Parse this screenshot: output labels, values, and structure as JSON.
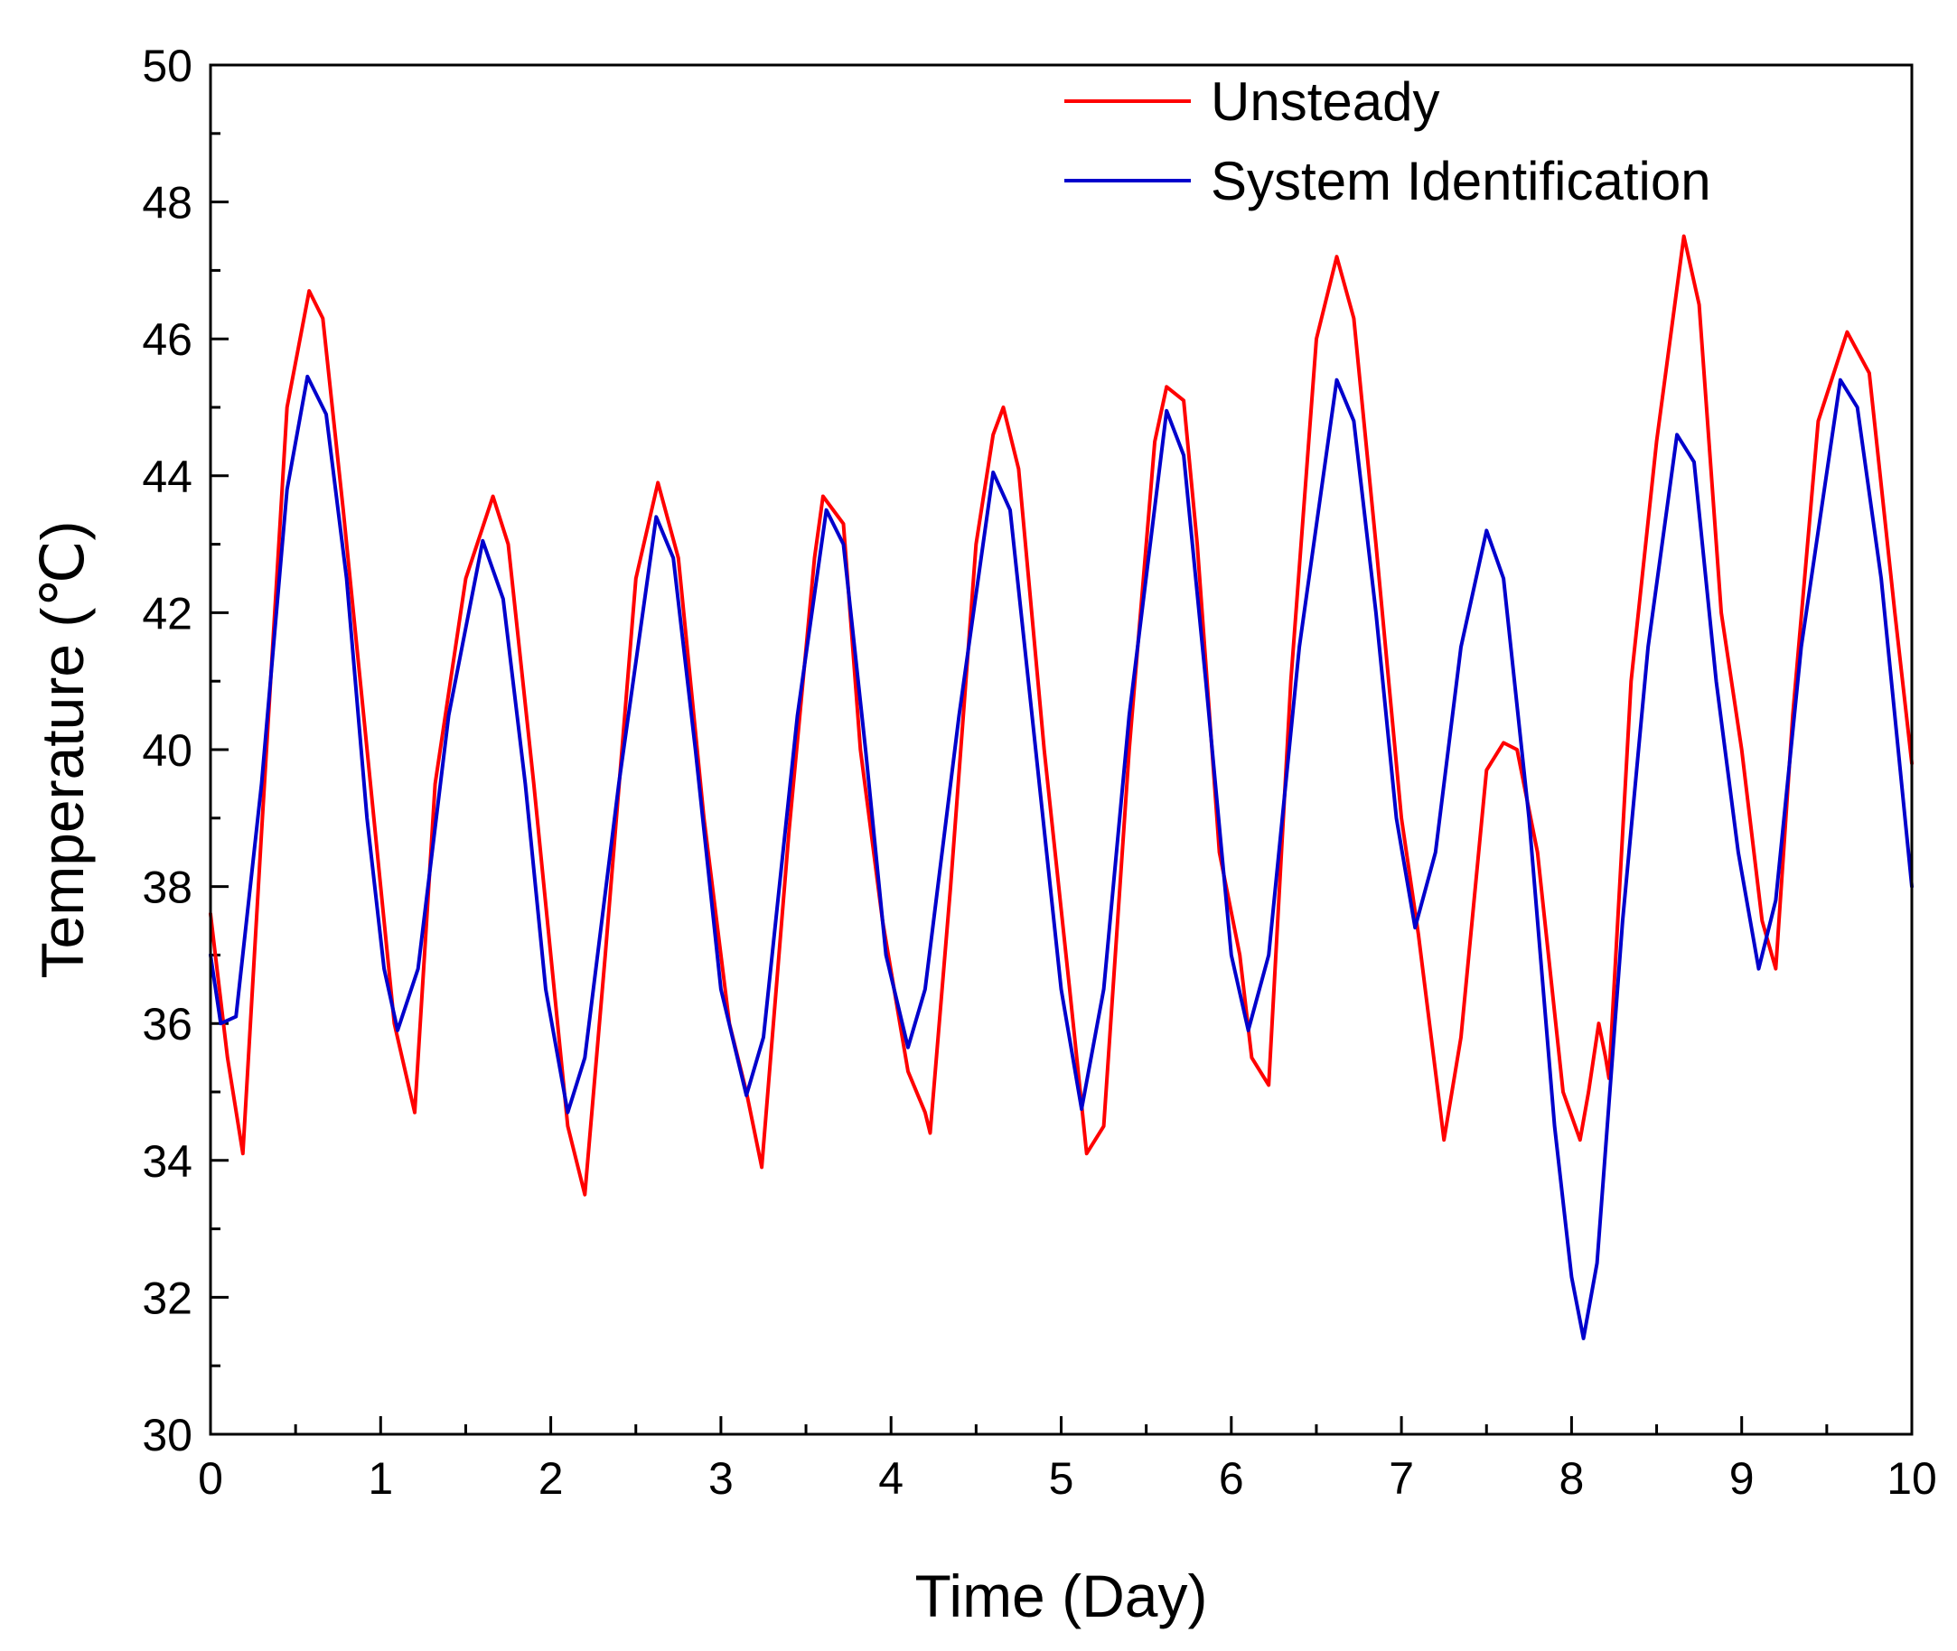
{
  "chart_data": {
    "type": "line",
    "title": "",
    "xlabel": "Time (Day)",
    "ylabel": "Temperature (℃)",
    "xlim": [
      0,
      10
    ],
    "ylim": [
      30,
      50
    ],
    "xticks": [
      0,
      1,
      2,
      3,
      4,
      5,
      6,
      7,
      8,
      9,
      10
    ],
    "yticks": [
      30,
      32,
      34,
      36,
      38,
      40,
      42,
      44,
      46,
      48,
      50
    ],
    "grid": false,
    "legend_position": "top-right",
    "series": [
      {
        "name": "Unsteady",
        "color": "#ff0000",
        "points": [
          [
            0,
            37.6
          ],
          [
            0.1,
            35.5
          ],
          [
            0.19,
            34.1
          ],
          [
            0.3,
            38.8
          ],
          [
            0.45,
            45.0
          ],
          [
            0.58,
            46.7
          ],
          [
            0.66,
            46.3
          ],
          [
            0.78,
            43.5
          ],
          [
            0.9,
            40.5
          ],
          [
            1.0,
            38.0
          ],
          [
            1.08,
            36.0
          ],
          [
            1.2,
            34.7
          ],
          [
            1.32,
            39.5
          ],
          [
            1.5,
            42.5
          ],
          [
            1.66,
            43.7
          ],
          [
            1.75,
            43.0
          ],
          [
            1.9,
            39.5
          ],
          [
            2.0,
            37.0
          ],
          [
            2.1,
            34.5
          ],
          [
            2.2,
            33.5
          ],
          [
            2.32,
            37.0
          ],
          [
            2.5,
            42.5
          ],
          [
            2.63,
            43.9
          ],
          [
            2.75,
            42.8
          ],
          [
            2.9,
            39.0
          ],
          [
            3.05,
            36.0
          ],
          [
            3.15,
            35.0
          ],
          [
            3.24,
            33.9
          ],
          [
            3.4,
            38.8
          ],
          [
            3.55,
            42.8
          ],
          [
            3.6,
            43.7
          ],
          [
            3.72,
            43.3
          ],
          [
            3.82,
            40.0
          ],
          [
            3.95,
            37.5
          ],
          [
            4.1,
            35.3
          ],
          [
            4.2,
            34.7
          ],
          [
            4.23,
            34.4
          ],
          [
            4.35,
            38.0
          ],
          [
            4.5,
            43.0
          ],
          [
            4.6,
            44.6
          ],
          [
            4.66,
            45.0
          ],
          [
            4.75,
            44.1
          ],
          [
            4.9,
            40.0
          ],
          [
            5.05,
            36.5
          ],
          [
            5.15,
            34.1
          ],
          [
            5.25,
            34.5
          ],
          [
            5.4,
            40.0
          ],
          [
            5.55,
            44.5
          ],
          [
            5.62,
            45.3
          ],
          [
            5.72,
            45.1
          ],
          [
            5.8,
            43.0
          ],
          [
            5.93,
            38.5
          ],
          [
            6.05,
            37.0
          ],
          [
            6.12,
            35.5
          ],
          [
            6.22,
            35.1
          ],
          [
            6.35,
            41.0
          ],
          [
            6.5,
            46.0
          ],
          [
            6.62,
            47.2
          ],
          [
            6.72,
            46.3
          ],
          [
            6.85,
            43.0
          ],
          [
            7.0,
            39.0
          ],
          [
            7.1,
            37.3
          ],
          [
            7.25,
            34.3
          ],
          [
            7.35,
            35.8
          ],
          [
            7.5,
            39.7
          ],
          [
            7.6,
            40.1
          ],
          [
            7.68,
            40.0
          ],
          [
            7.8,
            38.5
          ],
          [
            7.95,
            35.0
          ],
          [
            8.05,
            34.3
          ],
          [
            8.1,
            35.0
          ],
          [
            8.16,
            36.0
          ],
          [
            8.2,
            35.5
          ],
          [
            8.22,
            35.2
          ],
          [
            8.35,
            41.0
          ],
          [
            8.5,
            44.5
          ],
          [
            8.66,
            47.5
          ],
          [
            8.75,
            46.5
          ],
          [
            8.88,
            42.0
          ],
          [
            9.0,
            40.0
          ],
          [
            9.12,
            37.5
          ],
          [
            9.2,
            36.8
          ],
          [
            9.3,
            40.5
          ],
          [
            9.45,
            44.8
          ],
          [
            9.62,
            46.1
          ],
          [
            9.75,
            45.5
          ],
          [
            9.9,
            42.0
          ],
          [
            10.0,
            39.8
          ]
        ]
      },
      {
        "name": "System Identification",
        "color": "#0000cc",
        "points": [
          [
            0,
            37.0
          ],
          [
            0.06,
            36.0
          ],
          [
            0.15,
            36.1
          ],
          [
            0.3,
            39.5
          ],
          [
            0.45,
            43.8
          ],
          [
            0.57,
            45.45
          ],
          [
            0.68,
            44.9
          ],
          [
            0.8,
            42.5
          ],
          [
            0.92,
            39.0
          ],
          [
            1.02,
            36.8
          ],
          [
            1.1,
            35.9
          ],
          [
            1.22,
            36.8
          ],
          [
            1.4,
            40.5
          ],
          [
            1.6,
            43.05
          ],
          [
            1.72,
            42.2
          ],
          [
            1.85,
            39.5
          ],
          [
            1.97,
            36.5
          ],
          [
            2.1,
            34.7
          ],
          [
            2.2,
            35.5
          ],
          [
            2.4,
            39.5
          ],
          [
            2.62,
            43.4
          ],
          [
            2.72,
            42.8
          ],
          [
            2.85,
            40.0
          ],
          [
            3.0,
            36.5
          ],
          [
            3.15,
            34.95
          ],
          [
            3.25,
            35.8
          ],
          [
            3.45,
            40.5
          ],
          [
            3.62,
            43.5
          ],
          [
            3.72,
            43.0
          ],
          [
            3.85,
            40.0
          ],
          [
            3.97,
            37.0
          ],
          [
            4.1,
            35.65
          ],
          [
            4.2,
            36.5
          ],
          [
            4.4,
            40.5
          ],
          [
            4.6,
            44.05
          ],
          [
            4.7,
            43.5
          ],
          [
            4.85,
            40.0
          ],
          [
            5.0,
            36.5
          ],
          [
            5.12,
            34.75
          ],
          [
            5.25,
            36.5
          ],
          [
            5.4,
            40.5
          ],
          [
            5.62,
            44.95
          ],
          [
            5.72,
            44.3
          ],
          [
            5.85,
            41.0
          ],
          [
            6.0,
            37.0
          ],
          [
            6.1,
            35.9
          ],
          [
            6.22,
            37.0
          ],
          [
            6.4,
            41.5
          ],
          [
            6.62,
            45.4
          ],
          [
            6.72,
            44.8
          ],
          [
            6.85,
            42.0
          ],
          [
            6.97,
            39.0
          ],
          [
            7.08,
            37.4
          ],
          [
            7.2,
            38.5
          ],
          [
            7.35,
            41.5
          ],
          [
            7.5,
            43.2
          ],
          [
            7.6,
            42.5
          ],
          [
            7.75,
            39.0
          ],
          [
            7.9,
            34.5
          ],
          [
            8.0,
            32.3
          ],
          [
            8.07,
            31.4
          ],
          [
            8.15,
            32.5
          ],
          [
            8.3,
            37.5
          ],
          [
            8.45,
            41.5
          ],
          [
            8.62,
            44.6
          ],
          [
            8.72,
            44.2
          ],
          [
            8.85,
            41.0
          ],
          [
            8.98,
            38.5
          ],
          [
            9.1,
            36.8
          ],
          [
            9.2,
            37.8
          ],
          [
            9.35,
            41.5
          ],
          [
            9.58,
            45.4
          ],
          [
            9.68,
            45.0
          ],
          [
            9.82,
            42.5
          ],
          [
            10.0,
            38.0
          ]
        ]
      }
    ]
  }
}
